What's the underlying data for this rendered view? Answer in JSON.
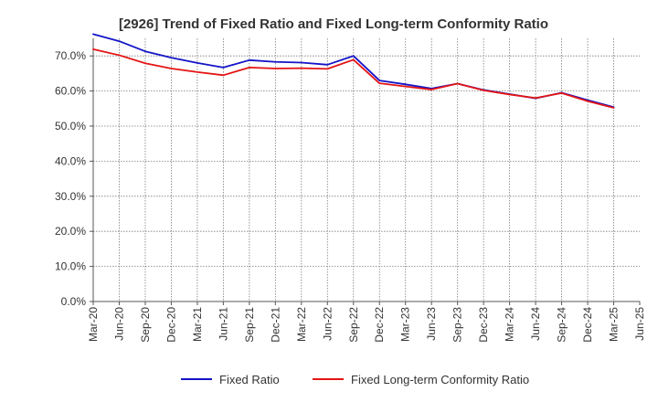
{
  "chart_data": {
    "type": "line",
    "title": "[2926]  Trend of Fixed Ratio and Fixed Long-term Conformity Ratio",
    "xlabel": "",
    "ylabel": "",
    "ylim": [
      0,
      75
    ],
    "yticks": [
      0,
      10,
      20,
      30,
      40,
      50,
      60,
      70
    ],
    "ytick_labels": [
      "0.0%",
      "10.0%",
      "20.0%",
      "30.0%",
      "40.0%",
      "50.0%",
      "60.0%",
      "70.0%"
    ],
    "xtick_labels": [
      "Mar-20",
      "Jun-20",
      "Sep-20",
      "Dec-20",
      "Mar-21",
      "Jun-21",
      "Sep-21",
      "Dec-21",
      "Mar-22",
      "Jun-22",
      "Sep-22",
      "Dec-22",
      "Mar-23",
      "Jun-23",
      "Sep-23",
      "Dec-23",
      "Mar-24",
      "Jun-24",
      "Sep-24",
      "Dec-24",
      "Mar-25",
      "Jun-25"
    ],
    "x": [
      "Mar-20",
      "Jun-20",
      "Sep-20",
      "Dec-20",
      "Mar-21",
      "Jun-21",
      "Sep-21",
      "Dec-21",
      "Mar-22",
      "Jun-22",
      "Sep-22",
      "Dec-22",
      "Mar-23",
      "Jun-23",
      "Sep-23",
      "Dec-23",
      "Mar-24",
      "Jun-24",
      "Sep-24",
      "Dec-24",
      "Mar-25"
    ],
    "grid": true,
    "legend_position": "bottom",
    "series": [
      {
        "name": "Fixed Ratio",
        "color": "#1414c8",
        "values": [
          76.2,
          74.2,
          71.3,
          69.5,
          68.0,
          66.7,
          68.8,
          68.3,
          68.1,
          67.5,
          70.0,
          63.0,
          61.9,
          60.7,
          62.1,
          60.3,
          59.1,
          57.9,
          59.5,
          57.4,
          55.4
        ]
      },
      {
        "name": "Fixed Long-term Conformity Ratio",
        "color": "#e41414",
        "values": [
          71.9,
          70.2,
          67.9,
          66.4,
          65.4,
          64.5,
          66.7,
          66.4,
          66.5,
          66.3,
          68.9,
          62.2,
          61.3,
          60.4,
          62.1,
          60.2,
          59.0,
          58.0,
          59.4,
          57.1,
          55.2
        ]
      }
    ]
  }
}
